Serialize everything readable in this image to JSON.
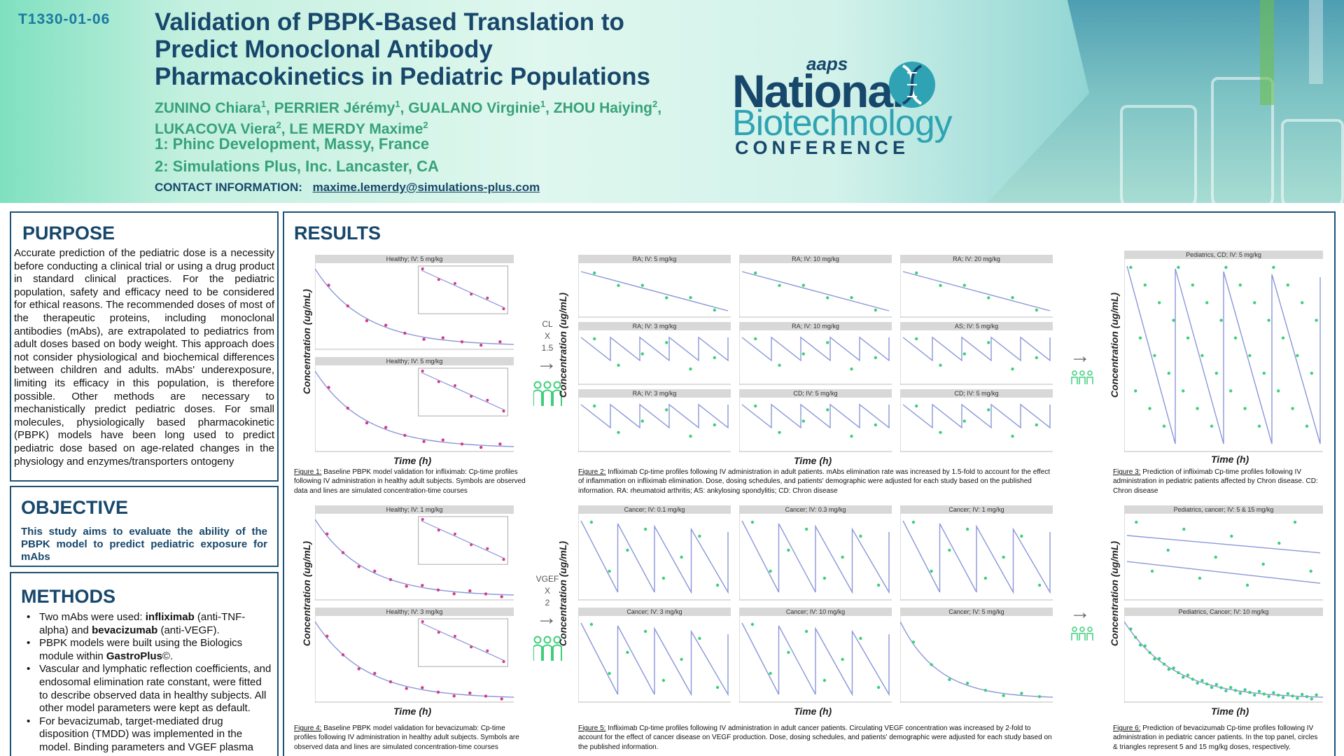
{
  "header": {
    "code": "T1330-01-06",
    "title": "Validation of PBPK-Based Translation to Predict Monoclonal Antibody Pharmacokinetics in Pediatric Populations",
    "authors": [
      {
        "name": "ZUNINO Chiara",
        "sup": "1",
        "sep": ", "
      },
      {
        "name": "PERRIER Jérémy",
        "sup": "1",
        "sep": ", "
      },
      {
        "name": "GUALANO Virginie",
        "sup": "1",
        "sep": ", "
      },
      {
        "name": "ZHOU Haiying",
        "sup": "2",
        "sep": ", "
      },
      {
        "name": "LUKACOVA Viera",
        "sup": "2",
        "sep": ", "
      },
      {
        "name": "LE MERDY Maxime",
        "sup": "2",
        "sep": ""
      }
    ],
    "affiliation_1": "1: Phinc Development, Massy, France",
    "affiliation_2": "2: Simulations Plus, Inc. Lancaster, CA",
    "contact_label": "CONTACT INFORMATION:",
    "contact_email": "maxime.lemerdy@simulations-plus.com"
  },
  "logo": {
    "aaps": "aaps",
    "national": "National",
    "biotech": "Biotechnology",
    "conference": "CONFERENCE",
    "dna_icon": "dna-helix-icon"
  },
  "purpose": {
    "title": "PURPOSE",
    "text": "Accurate prediction of the pediatric dose is a necessity before conducting a clinical trial or using a drug product in standard clinical practices. For the pediatric population, safety and efficacy need to be considered for ethical reasons. The recommended doses of most of the therapeutic proteins, including monoclonal antibodies (mAbs), are extrapolated to pediatrics from adult doses based on body weight. This approach does not consider physiological and biochemical differences between children and adults. mAbs' underexposure, limiting its efficacy in this population, is therefore possible. Other methods are necessary to mechanistically predict pediatric doses. For small molecules, physiologically based pharmacokinetic (PBPK) models have been long used to predict pediatric dose based on age-related changes in the physiology and enzymes/transporters ontogeny"
  },
  "objective": {
    "title": "OBJECTIVE",
    "text": "This study aims to evaluate the ability of the PBPK model to predict pediatric exposure for mAbs"
  },
  "methods": {
    "title": "METHODS",
    "bullets": [
      [
        {
          "t": "Two mAbs were used: ",
          "b": false
        },
        {
          "t": "infliximab",
          "b": true
        },
        {
          "t": " (anti-TNF-alpha) and ",
          "b": false
        },
        {
          "t": "bevacizumab",
          "b": true
        },
        {
          "t": " (anti-VEGF).",
          "b": false
        }
      ],
      [
        {
          "t": "PBPK models were built using the Biologics module within ",
          "b": false
        },
        {
          "t": "GastroPlus",
          "b": true
        },
        {
          "t": "©.",
          "b": false
        }
      ],
      [
        {
          "t": "Vascular and lymphatic reflection coefficients, and endosomal elimination rate constant, were fitted to describe observed data in healthy subjects. All other model parameters were kept as default.",
          "b": false
        }
      ],
      [
        {
          "t": "For bevacizumab, target-mediated drug disposition (TMDD) was implemented in the model. Binding parameters and VGEF plasma concentrations were extracted from the literature.",
          "b": false
        }
      ]
    ]
  },
  "results": {
    "title": "RESULTS",
    "y_label": "Concentration (ug/mL)",
    "x_label": "Time (h)",
    "row1_mid": {
      "l1": "CL",
      "l2": "X",
      "l3": "1.5"
    },
    "row2_mid": {
      "l1": "VGEF",
      "l2": "X",
      "l3": "2"
    },
    "arrow": "→",
    "people_icon": "people-group-icon",
    "figures": {
      "f1": {
        "label": "Figure 1:",
        "text": " Baseline PBPK model validation for infliximab: Cp-time profiles following IV administration in healthy adult subjects. Symbols are observed data and lines are simulated concentration-time courses"
      },
      "f2": {
        "label": "Figure 2:",
        "text": " Infliximab Cp-time profiles following IV administration in adult patients. mAbs elimination rate was increased by 1.5-fold to account for the effect of inflammation on infliximab elimination. Dose, dosing schedules, and patients' demographic were adjusted for each study based on the published information. RA: rheumatoid arthritis; AS: ankylosing spondylitis; CD: Chron disease"
      },
      "f3": {
        "label": "Figure 3:",
        "text": " Prediction of infliximab Cp-time profiles following IV administration in pediatric patients affected by Chron disease. CD: Chron disease"
      },
      "f4": {
        "label": "Figure 4:",
        "text": " Baseline PBPK model validation for bevacizumab: Cp-time profiles following IV administration in healthy adult subjects. Symbols are observed data and lines are simulated concentration-time courses"
      },
      "f5": {
        "label": "Figure 5:",
        "text": " Infliximab Cp-time profiles following IV administration in adult cancer patients. Circulating VEGF concentration was increased by 2-fold to account for the effect of cancer disease on VEGF production. Dose, dosing schedules, and patients' demographic were adjusted for each study based on the published information."
      },
      "f6": {
        "label": "Figure 6:",
        "text": " Prediction of bevacizumab Cp-time profiles following IV administration in pediatric cancer patients. In the top panel, circles & triangles represent 5 and 15 mg/kg doses, respectively."
      }
    }
  },
  "chart_data": [
    {
      "type": "line",
      "id": "healthy-infliximab",
      "panels": [
        "Healthy; IV: 5 mg/kg",
        "Healthy; IV: 5 mg/kg"
      ],
      "xlabel": "Time (h)",
      "ylabel": "Concentration (ug/mL)",
      "color": "#d23c8c"
    },
    {
      "type": "line",
      "id": "adult-infliximab",
      "panels": [
        "RA; IV: 5 mg/kg",
        "RA; IV: 10 mg/kg",
        "RA; IV: 20 mg/kg",
        "RA; IV: 3 mg/kg",
        "RA; IV: 10 mg/kg",
        "AS; IV: 5 mg/kg",
        "RA; IV: 3 mg/kg",
        "CD; IV: 5 mg/kg",
        "CD; IV: 5 mg/kg"
      ],
      "xlabel": "Time (h)",
      "ylabel": "Concentration (ug/mL)",
      "color": "#3ccf7a"
    },
    {
      "type": "line",
      "id": "pediatric-infliximab",
      "panels": [
        "Pediatrics, CD; IV: 5 mg/kg"
      ],
      "xlabel": "Time (h)",
      "ylabel": "Concentration (ug/mL)",
      "color": "#3ccf7a"
    },
    {
      "type": "line",
      "id": "healthy-bevacizumab",
      "panels": [
        "Healthy; IV: 1 mg/kg",
        "Healthy; IV: 3 mg/kg"
      ],
      "xlabel": "Time (h)",
      "ylabel": "Concentration (ug/mL)",
      "color": "#d23c8c"
    },
    {
      "type": "line",
      "id": "cancer-bevacizumab",
      "panels": [
        "Cancer; IV: 0.1 mg/kg",
        "Cancer; IV: 0.3 mg/kg",
        "Cancer; IV: 1 mg/kg",
        "Cancer; IV: 3 mg/kg",
        "Cancer; IV: 10 mg/kg",
        "Cancer; IV: 5 mg/kg"
      ],
      "xlabel": "Time (h)",
      "ylabel": "Concentration (ug/mL)",
      "color": "#3ccf7a"
    },
    {
      "type": "line",
      "id": "pediatric-bevacizumab",
      "panels": [
        "Pediatrics, cancer; IV: 5 & 15 mg/kg",
        "Pediatrics, Cancer; IV: 10 mg/kg"
      ],
      "xlabel": "Time (h)",
      "ylabel": "Concentration (ug/mL)",
      "color": "#3ccf7a"
    }
  ]
}
